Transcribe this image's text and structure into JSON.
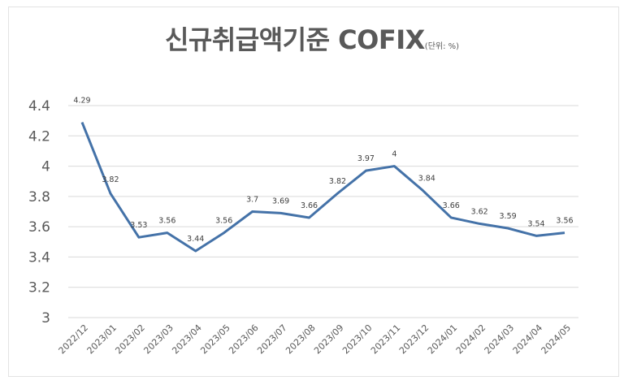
{
  "header": {
    "title": "신규취급액기준 COFIX",
    "unit": "(단위: %)"
  },
  "colors": {
    "line": "#4472a8",
    "grid": "#d9d9d9",
    "text": "#595959"
  },
  "chart_data": {
    "type": "line",
    "title": "신규취급액기준 COFIX (단위: %)",
    "xlabel": "",
    "ylabel": "",
    "ylim": [
      3,
      4.4
    ],
    "yticks": [
      "3",
      "3.2",
      "3.4",
      "3.6",
      "3.8",
      "4",
      "4.2",
      "4.4"
    ],
    "grid": true,
    "legend": "none",
    "categories": [
      "2022/12",
      "2023/01",
      "2023/02",
      "2023/03",
      "2023/04",
      "2023/05",
      "2023/06",
      "2023/07",
      "2023/08",
      "2023/09",
      "2023/10",
      "2023/11",
      "2023/12",
      "2024/01",
      "2024/02",
      "2024/03",
      "2024/04",
      "2024/05"
    ],
    "series": [
      {
        "name": "신규취급액기준 COFIX",
        "values": [
          4.29,
          3.82,
          3.53,
          3.56,
          3.44,
          3.56,
          3.7,
          3.69,
          3.66,
          3.82,
          3.97,
          4,
          3.84,
          3.66,
          3.62,
          3.59,
          3.54,
          3.56
        ]
      }
    ],
    "data_labels": [
      "4.29",
      "3.82",
      "3.53",
      "3.56",
      "3.44",
      "3.56",
      "3.7",
      "3.69",
      "3.66",
      "3.82",
      "3.97",
      "4",
      "3.84",
      "3.66",
      "3.62",
      "3.59",
      "3.54",
      "3.56"
    ]
  }
}
